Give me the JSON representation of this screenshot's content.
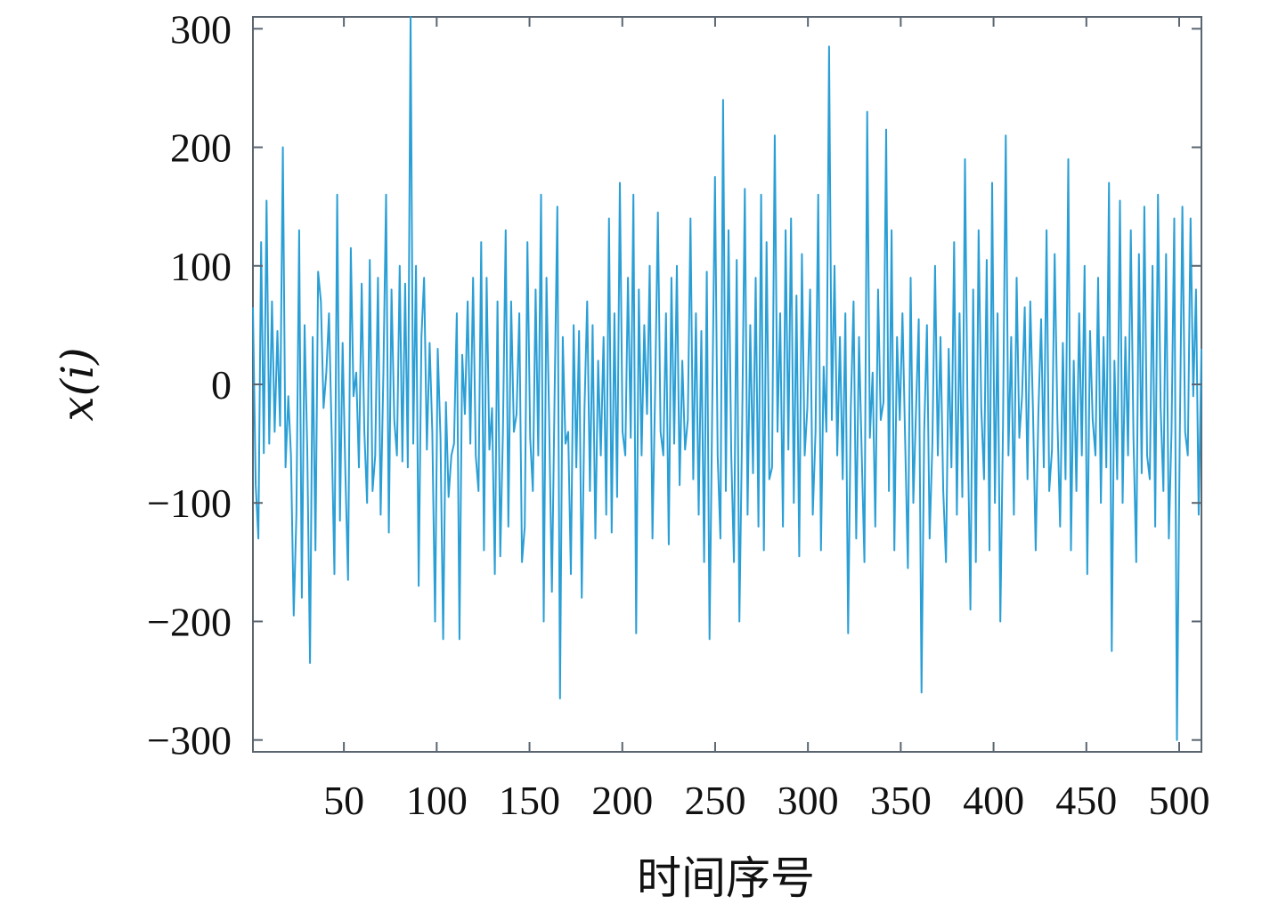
{
  "chart_data": {
    "type": "line",
    "title": "",
    "xlabel": "时间序号",
    "ylabel": "x(i)",
    "xlim": [
      1,
      512
    ],
    "ylim": [
      -310,
      310
    ],
    "x_ticks": [
      50,
      100,
      150,
      200,
      250,
      300,
      350,
      400,
      450,
      500
    ],
    "x_tick_labels": [
      "50",
      "100",
      "150",
      "200",
      "250",
      "300",
      "350",
      "400",
      "450",
      "500"
    ],
    "y_ticks": [
      300,
      200,
      100,
      0,
      -100,
      -200,
      -300
    ],
    "y_tick_labels": [
      "300",
      "200",
      "100",
      "0",
      "−100",
      "−200",
      "−300"
    ],
    "grid": false,
    "legend": "none",
    "line_color": "#2a9fd6",
    "series": [
      {
        "values": [
          65,
          -85,
          -130,
          120,
          -58,
          155,
          -50,
          70,
          -40,
          45,
          -35,
          200,
          -70,
          -10,
          -60,
          -195,
          -110,
          130,
          -180,
          50,
          -55,
          -235,
          40,
          -140,
          95,
          70,
          -20,
          10,
          60,
          -45,
          -160,
          160,
          -115,
          35,
          -75,
          -165,
          115,
          -10,
          10,
          -70,
          85,
          -40,
          -100,
          105,
          -90,
          -60,
          90,
          -110,
          10,
          160,
          -125,
          80,
          -30,
          -60,
          100,
          -65,
          85,
          -70,
          310,
          -50,
          100,
          -170,
          40,
          90,
          -55,
          35,
          -40,
          -200,
          30,
          -45,
          -215,
          -15,
          -95,
          -60,
          -50,
          60,
          -215,
          25,
          -25,
          70,
          -50,
          90,
          -60,
          -90,
          120,
          -140,
          90,
          -55,
          -20,
          -160,
          70,
          -145,
          -40,
          130,
          -120,
          70,
          -40,
          -25,
          60,
          -150,
          -120,
          120,
          -45,
          -90,
          80,
          -60,
          160,
          -200,
          90,
          -30,
          -175,
          -10,
          150,
          -265,
          40,
          -50,
          -40,
          -160,
          50,
          -70,
          45,
          -180,
          -20,
          70,
          -90,
          50,
          -130,
          20,
          -60,
          40,
          -110,
          140,
          -125,
          60,
          -95,
          170,
          -40,
          -60,
          90,
          -45,
          160,
          -210,
          80,
          -60,
          50,
          -25,
          100,
          -130,
          -5,
          145,
          -40,
          -60,
          60,
          -135,
          90,
          -50,
          100,
          -85,
          20,
          -55,
          -30,
          140,
          -80,
          60,
          -110,
          45,
          -150,
          95,
          -215,
          -20,
          175,
          -60,
          -130,
          240,
          -90,
          130,
          -60,
          -150,
          105,
          -200,
          -35,
          165,
          -110,
          50,
          -75,
          90,
          -120,
          160,
          -140,
          120,
          -80,
          -70,
          210,
          -40,
          60,
          -120,
          130,
          -55,
          140,
          -100,
          75,
          -145,
          110,
          -60,
          -20,
          80,
          -110,
          -40,
          160,
          -140,
          15,
          -40,
          285,
          -30,
          100,
          -60,
          40,
          -80,
          60,
          -210,
          -20,
          70,
          -130,
          40,
          -60,
          -150,
          230,
          -45,
          10,
          -120,
          80,
          -30,
          -15,
          215,
          -90,
          130,
          -140,
          40,
          -30,
          60,
          -50,
          -155,
          90,
          -100,
          -20,
          55,
          -260,
          -40,
          50,
          -130,
          -50,
          100,
          -60,
          40,
          -90,
          -150,
          30,
          -70,
          120,
          -110,
          60,
          -95,
          190,
          -40,
          -190,
          80,
          -150,
          130,
          -20,
          -80,
          105,
          -140,
          170,
          -100,
          60,
          -200,
          -35,
          210,
          -60,
          40,
          -110,
          90,
          -45,
          -10,
          65,
          -80,
          70,
          -20,
          -140,
          -25,
          55,
          -70,
          130,
          -90,
          -55,
          110,
          -30,
          -120,
          35,
          -80,
          190,
          -140,
          20,
          -90,
          60,
          -60,
          100,
          -160,
          45,
          -30,
          -60,
          90,
          -100,
          40,
          -70,
          170,
          -225,
          20,
          -80,
          155,
          -100,
          40,
          -60,
          130,
          -45,
          -150,
          110,
          -75,
          150,
          -60,
          -80,
          100,
          -120,
          160,
          -20,
          -90,
          110,
          -130,
          -40,
          140,
          -300,
          -50,
          150,
          -40,
          -60,
          140,
          -10,
          80,
          -110,
          30
        ]
      }
    ]
  }
}
